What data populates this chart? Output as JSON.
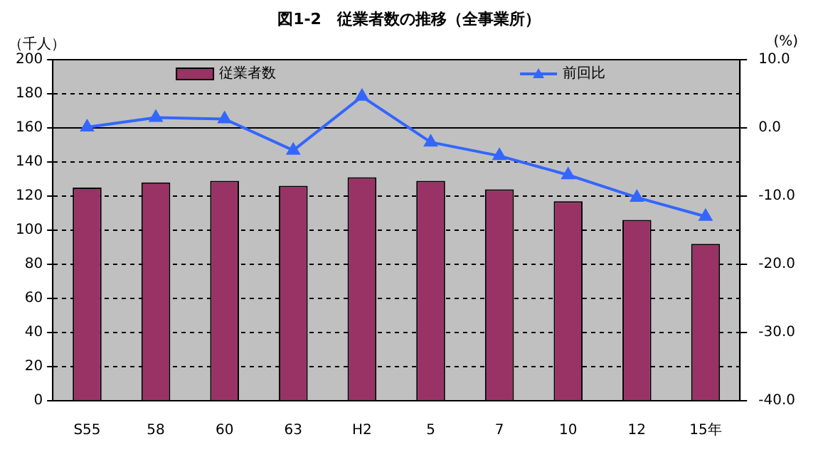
{
  "chart_data": {
    "type": "bar",
    "title": "図1-2　従業者数の推移（全事業所）",
    "ylabel": "（千人）",
    "y2label": "(%)",
    "categories": [
      "S55",
      "58",
      "60",
      "63",
      "H2",
      "5",
      "7",
      "10",
      "12",
      "15年"
    ],
    "series": [
      {
        "name": "従業者数",
        "color": "#993366",
        "values": [
          125,
          128,
          129,
          126,
          131,
          129,
          124,
          117,
          106,
          92
        ]
      },
      {
        "name": "前回比",
        "type": "line",
        "axis": "y2",
        "color": "#3366ff",
        "marker": "triangle",
        "values": [
          0.1,
          1.5,
          1.3,
          -3.3,
          4.6,
          -2.1,
          -4.1,
          -6.9,
          -10.2,
          -13.0
        ]
      }
    ],
    "ylim": [
      0,
      200
    ],
    "yticks": [
      0,
      20,
      40,
      60,
      80,
      100,
      120,
      140,
      160,
      180,
      200
    ],
    "y2lim": [
      -40,
      10
    ],
    "y2ticks": [
      {
        "value": -40,
        "label": "-40.0"
      },
      {
        "value": -30,
        "label": "-30.0"
      },
      {
        "value": -20,
        "label": "-20.0"
      },
      {
        "value": -10,
        "label": "-10.0"
      },
      {
        "value": 0,
        "label": "0.0"
      },
      {
        "value": 10,
        "label": "10.0"
      }
    ],
    "ref_lines": [
      {
        "axis": "y2",
        "value": 0,
        "color": "#000000"
      }
    ],
    "grid": "y",
    "legend": "top"
  }
}
